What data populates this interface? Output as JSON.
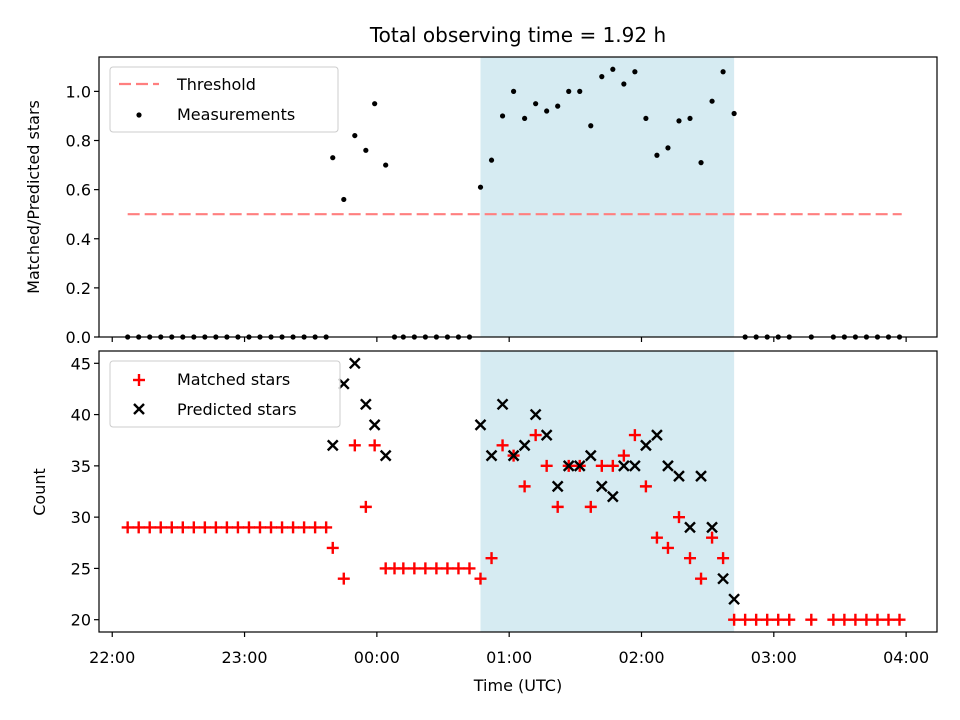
{
  "chart_data": [
    {
      "type": "scatter",
      "title": "Total observing time = 1.92 h",
      "xlabel": "",
      "ylabel": "Matched/Predicted stars",
      "ylim": [
        0,
        1.14
      ],
      "xlim": [
        "21:54",
        "04:14"
      ],
      "yticks": [
        "0.0",
        "0.2",
        "0.4",
        "0.6",
        "0.8",
        "1.0"
      ],
      "legend_position": "upper left",
      "shaded_interval": [
        "00:47",
        "02:42"
      ],
      "shade_color": "#add8e6",
      "series": [
        {
          "name": "Threshold",
          "kind": "dashed-line",
          "color": "#ff7f7f",
          "x": [
            "22:07",
            "03:58"
          ],
          "y": [
            0.5,
            0.5
          ]
        },
        {
          "name": "Measurements",
          "kind": "points",
          "color": "#000000",
          "x": [
            "22:07",
            "22:12",
            "22:17",
            "22:22",
            "22:27",
            "22:32",
            "22:37",
            "22:42",
            "22:47",
            "22:52",
            "22:57",
            "23:02",
            "23:07",
            "23:12",
            "23:17",
            "23:22",
            "23:27",
            "23:32",
            "23:37",
            "23:40",
            "23:45",
            "23:50",
            "23:55",
            "23:59",
            "00:04",
            "00:08",
            "00:12",
            "00:17",
            "00:22",
            "00:27",
            "00:32",
            "00:37",
            "00:42",
            "00:47",
            "00:52",
            "00:57",
            "01:02",
            "01:07",
            "01:12",
            "01:17",
            "01:22",
            "01:27",
            "01:32",
            "01:37",
            "01:42",
            "01:47",
            "01:52",
            "01:57",
            "02:02",
            "02:07",
            "02:12",
            "02:17",
            "02:22",
            "02:27",
            "02:32",
            "02:37",
            "02:42",
            "02:47",
            "02:52",
            "02:57",
            "03:02",
            "03:07",
            "03:17",
            "03:27",
            "03:32",
            "03:37",
            "03:42",
            "03:47",
            "03:52",
            "03:57"
          ],
          "y": [
            0,
            0,
            0,
            0,
            0,
            0,
            0,
            0,
            0,
            0,
            0,
            0,
            0,
            0,
            0,
            0,
            0,
            0,
            0,
            0.73,
            0.56,
            0.82,
            0.76,
            0.95,
            0.7,
            0,
            0,
            0,
            0,
            0,
            0,
            0,
            0,
            0.61,
            0.72,
            0.9,
            1.0,
            0.89,
            0.95,
            0.92,
            0.94,
            1.0,
            1.0,
            0.86,
            1.06,
            1.09,
            1.03,
            1.08,
            0.89,
            0.74,
            0.77,
            0.88,
            0.89,
            0.71,
            0.96,
            1.08,
            0.91,
            0,
            0,
            0,
            0,
            0,
            0,
            0,
            0,
            0,
            0,
            0,
            0,
            0
          ]
        }
      ]
    },
    {
      "type": "scatter",
      "title": "",
      "xlabel": "Time (UTC)",
      "ylabel": "Count",
      "ylim": [
        18.8,
        46.2
      ],
      "xlim": [
        "21:54",
        "04:14"
      ],
      "xticks": [
        "22:00",
        "23:00",
        "00:00",
        "01:00",
        "02:00",
        "03:00",
        "04:00"
      ],
      "yticks": [
        "20",
        "25",
        "30",
        "35",
        "40",
        "45"
      ],
      "legend_position": "upper left",
      "shaded_interval": [
        "00:47",
        "02:42"
      ],
      "shade_color": "#add8e6",
      "series": [
        {
          "name": "Matched stars",
          "kind": "plus",
          "color": "#ff0000",
          "x": [
            "22:07",
            "22:12",
            "22:17",
            "22:22",
            "22:27",
            "22:32",
            "22:37",
            "22:42",
            "22:47",
            "22:52",
            "22:57",
            "23:02",
            "23:07",
            "23:12",
            "23:17",
            "23:22",
            "23:27",
            "23:32",
            "23:37",
            "23:40",
            "23:45",
            "23:50",
            "23:55",
            "23:59",
            "00:04",
            "00:08",
            "00:12",
            "00:17",
            "00:22",
            "00:27",
            "00:32",
            "00:37",
            "00:42",
            "00:47",
            "00:52",
            "00:57",
            "01:02",
            "01:07",
            "01:12",
            "01:17",
            "01:22",
            "01:27",
            "01:32",
            "01:37",
            "01:42",
            "01:47",
            "01:52",
            "01:57",
            "02:02",
            "02:07",
            "02:12",
            "02:17",
            "02:22",
            "02:27",
            "02:32",
            "02:37",
            "02:42",
            "02:47",
            "02:52",
            "02:57",
            "03:02",
            "03:07",
            "03:17",
            "03:27",
            "03:32",
            "03:37",
            "03:42",
            "03:47",
            "03:52",
            "03:57"
          ],
          "y": [
            29,
            29,
            29,
            29,
            29,
            29,
            29,
            29,
            29,
            29,
            29,
            29,
            29,
            29,
            29,
            29,
            29,
            29,
            29,
            27,
            24,
            37,
            31,
            37,
            25,
            25,
            25,
            25,
            25,
            25,
            25,
            25,
            25,
            24,
            26,
            37,
            36,
            33,
            38,
            35,
            31,
            35,
            35,
            31,
            35,
            35,
            36,
            38,
            33,
            28,
            27,
            30,
            26,
            24,
            28,
            26,
            20,
            20,
            20,
            20,
            20,
            20,
            20,
            20,
            20,
            20,
            20,
            20,
            20,
            20
          ]
        },
        {
          "name": "Predicted stars",
          "kind": "x",
          "color": "#000000",
          "x": [
            "23:40",
            "23:45",
            "23:50",
            "23:55",
            "23:59",
            "00:04",
            "00:47",
            "00:52",
            "00:57",
            "01:02",
            "01:07",
            "01:12",
            "01:17",
            "01:22",
            "01:27",
            "01:32",
            "01:37",
            "01:42",
            "01:47",
            "01:52",
            "01:57",
            "02:02",
            "02:07",
            "02:12",
            "02:17",
            "02:22",
            "02:27",
            "02:32",
            "02:37",
            "02:42"
          ],
          "y": [
            37,
            43,
            45,
            41,
            39,
            36,
            39,
            36,
            41,
            36,
            37,
            40,
            38,
            33,
            35,
            35,
            36,
            33,
            32,
            35,
            35,
            37,
            38,
            35,
            34,
            29,
            34,
            29,
            24,
            22
          ]
        }
      ]
    }
  ]
}
